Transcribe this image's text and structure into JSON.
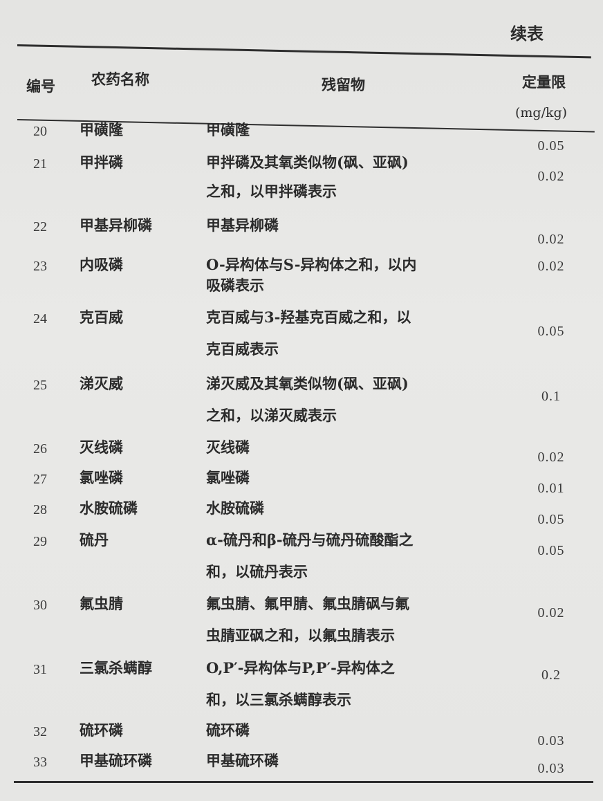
{
  "caption": "续表",
  "header": {
    "number": "编号",
    "name": "农药名称",
    "residue": "残留物",
    "limit": "定量限",
    "limit_unit": "(mg/kg)"
  },
  "rows": [
    {
      "number": "20",
      "name": "甲磺隆",
      "residue": [
        "甲磺隆"
      ],
      "limit": "0.05"
    },
    {
      "number": "21",
      "name": "甲拌磷",
      "residue": [
        "甲拌磷及其氧类似物(砜、亚砜)",
        "之和，以甲拌磷表示"
      ],
      "limit": "0.02"
    },
    {
      "number": "22",
      "name": "甲基异柳磷",
      "residue": [
        "甲基异柳磷"
      ],
      "limit": "0.02"
    },
    {
      "number": "23",
      "name": "内吸磷",
      "residue": [
        "O-异构体与S-异构体之和，以内",
        "吸磷表示"
      ],
      "limit": "0.02"
    },
    {
      "number": "24",
      "name": "克百威",
      "residue": [
        "克百威与3-羟基克百威之和，以",
        "克百威表示"
      ],
      "limit": "0.05"
    },
    {
      "number": "25",
      "name": "涕灭威",
      "residue": [
        "涕灭威及其氧类似物(砜、亚砜)",
        "之和，以涕灭威表示"
      ],
      "limit": "0.1"
    },
    {
      "number": "26",
      "name": "灭线磷",
      "residue": [
        "灭线磷"
      ],
      "limit": "0.02"
    },
    {
      "number": "27",
      "name": "氯唑磷",
      "residue": [
        "氯唑磷"
      ],
      "limit": "0.01"
    },
    {
      "number": "28",
      "name": "水胺硫磷",
      "residue": [
        "水胺硫磷"
      ],
      "limit": "0.05"
    },
    {
      "number": "29",
      "name": "硫丹",
      "residue": [
        "α-硫丹和β-硫丹与硫丹硫酸酯之",
        "和，以硫丹表示"
      ],
      "limit": "0.05"
    },
    {
      "number": "30",
      "name": "氟虫腈",
      "residue": [
        "氟虫腈、氟甲腈、氟虫腈砜与氟",
        "虫腈亚砜之和，以氟虫腈表示"
      ],
      "limit": "0.02"
    },
    {
      "number": "31",
      "name": "三氯杀螨醇",
      "residue": [
        "O,P′-异构体与P,P′-异构体之",
        "和，以三氯杀螨醇表示"
      ],
      "limit": "0.2"
    },
    {
      "number": "32",
      "name": "硫环磷",
      "residue": [
        "硫环磷"
      ],
      "limit": "0.03"
    },
    {
      "number": "33",
      "name": "甲基硫环磷",
      "residue": [
        "甲基硫环磷"
      ],
      "limit": "0.03"
    }
  ]
}
